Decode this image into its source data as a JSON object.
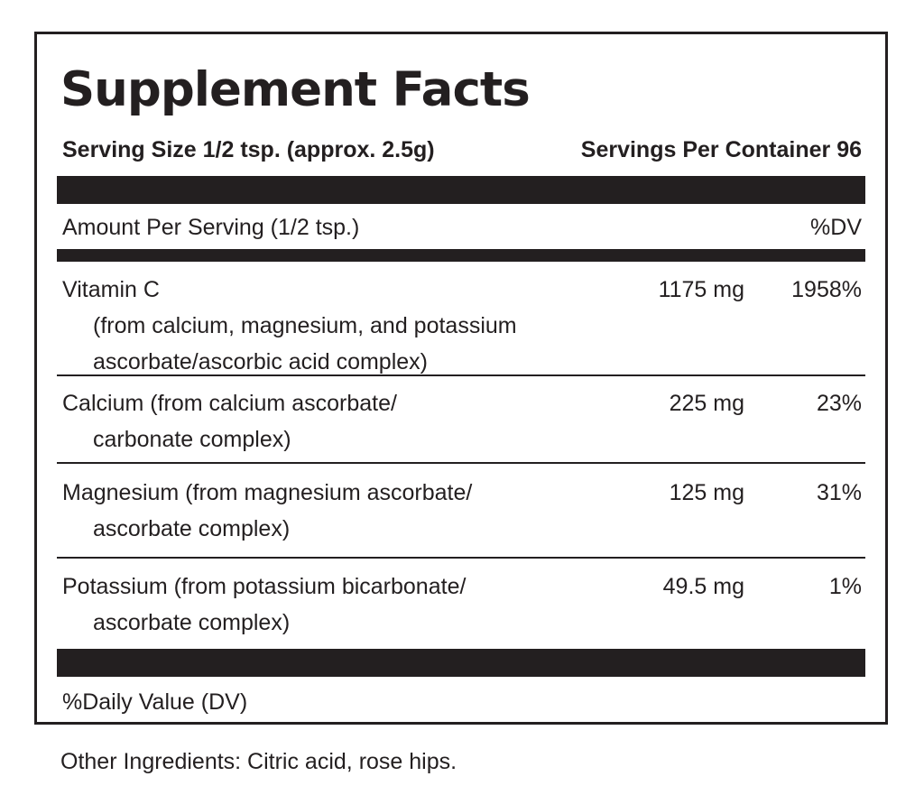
{
  "label": {
    "title": "Supplement Facts",
    "serving_size": "Serving Size 1/2 tsp. (approx. 2.5g)",
    "servings_per_container": "Servings Per Container 96",
    "amount_per_serving": "Amount Per Serving (1/2 tsp.)",
    "dv_header": "%DV",
    "nutrients": [
      {
        "name": "Vitamin C",
        "source_lines": [
          "(from calcium, magnesium, and potassium",
          "ascorbate/ascorbic acid complex)"
        ],
        "amount": "1175 mg",
        "dv": "1958%"
      },
      {
        "name": "Calcium (from calcium ascorbate/",
        "source_lines": [
          "carbonate complex)"
        ],
        "amount": "225 mg",
        "dv": "23%"
      },
      {
        "name": "Magnesium (from magnesium ascorbate/",
        "source_lines": [
          "ascorbate complex)"
        ],
        "amount": "125 mg",
        "dv": "31%"
      },
      {
        "name": "Potassium (from potassium bicarbonate/",
        "source_lines": [
          "ascorbate complex)"
        ],
        "amount": "49.5 mg",
        "dv": "1%"
      }
    ],
    "footnote": "%Daily Value (DV)"
  },
  "other_ingredients": "Other Ingredients: Citric acid, rose hips.",
  "colors": {
    "ink": "#231f20",
    "background": "#ffffff"
  }
}
